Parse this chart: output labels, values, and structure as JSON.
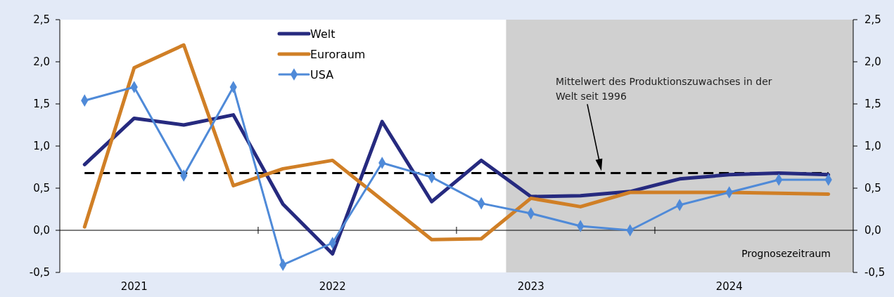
{
  "chart_data": {
    "type": "line",
    "x": [
      2021.125,
      2021.375,
      2021.625,
      2021.875,
      2022.125,
      2022.375,
      2022.625,
      2022.875,
      2023.125,
      2023.375,
      2023.625,
      2023.875,
      2024.125,
      2024.375,
      2024.625,
      2024.875
    ],
    "xlim": [
      2021,
      2025
    ],
    "xticks": [
      {
        "value": 2021.375,
        "label": "2021"
      },
      {
        "value": 2022,
        "label": null
      },
      {
        "value": 2022.375,
        "label": "2022"
      },
      {
        "value": 2023,
        "label": null
      },
      {
        "value": 2023.375,
        "label": "2023"
      },
      {
        "value": 2024,
        "label": null
      },
      {
        "value": 2024.375,
        "label": "2024"
      }
    ],
    "ylim": [
      -0.5,
      2.5
    ],
    "yticks": [
      {
        "value": -0.5,
        "label": "-0,5"
      },
      {
        "value": 0,
        "label": "0,0"
      },
      {
        "value": 0.5,
        "label": "0,5"
      },
      {
        "value": 1,
        "label": "1,0"
      },
      {
        "value": 1.5,
        "label": "1,5"
      },
      {
        "value": 2,
        "label": "2,0"
      },
      {
        "value": 2.5,
        "label": "2,5"
      }
    ],
    "y2lim": [
      -0.5,
      2.5
    ],
    "y2ticks": [
      {
        "value": -0.5,
        "label": "-0,5"
      },
      {
        "value": 0,
        "label": "0,0"
      },
      {
        "value": 0.5,
        "label": "0,5"
      },
      {
        "value": 1,
        "label": "1,0"
      },
      {
        "value": 1.5,
        "label": "1,5"
      },
      {
        "value": 2,
        "label": "2,0"
      },
      {
        "value": 2.5,
        "label": "2,5"
      }
    ],
    "series": [
      {
        "name": "Welt",
        "color": "#262a7f",
        "marker": "none",
        "values": [
          0.78,
          1.33,
          1.25,
          1.37,
          0.31,
          -0.28,
          1.29,
          0.34,
          0.83,
          0.4,
          0.41,
          0.46,
          0.61,
          0.66,
          0.68,
          0.66
        ]
      },
      {
        "name": "Euroraum",
        "color": "#d07f26",
        "marker": "none",
        "values": [
          0.04,
          1.93,
          2.2,
          0.53,
          0.73,
          0.83,
          0.36,
          -0.11,
          -0.1,
          0.38,
          0.28,
          0.45,
          0.45,
          0.45,
          0.44,
          0.43
        ]
      },
      {
        "name": "USA",
        "color": "#4f8ad8",
        "marker": "diamond",
        "values": [
          1.54,
          1.7,
          0.65,
          1.7,
          -0.41,
          -0.15,
          0.8,
          0.63,
          0.32,
          0.2,
          0.05,
          0.0,
          0.3,
          0.45,
          0.6,
          0.6
        ]
      }
    ],
    "ref_lines": [
      {
        "axis": "y",
        "value": 0.68,
        "color": "#000000",
        "line_style": "dashed"
      },
      {
        "axis": "y",
        "value": 0,
        "color": "#000000",
        "line_style": "solid"
      }
    ],
    "annotations": [
      "Mittelwert des Produktionszuwachses in der Welt seit 1996"
    ],
    "bands": [
      {
        "axis": "x",
        "from": 2023.25,
        "to": 2025,
        "label": "Prognosezeitraum",
        "color": "#d0d0d0"
      }
    ],
    "legend": "top left",
    "grid": false,
    "line_style": "solid"
  }
}
